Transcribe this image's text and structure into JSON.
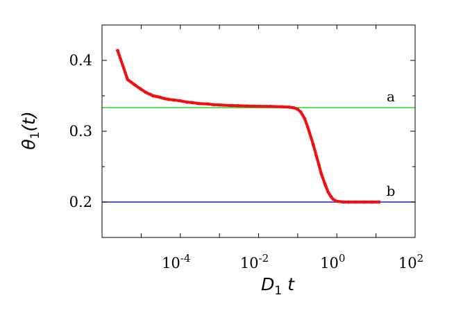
{
  "chart_data": {
    "type": "scatter",
    "title": "",
    "xlabel": {
      "main": "D",
      "sub": "1",
      "rest": " t"
    },
    "ylabel": {
      "main": "θ",
      "sub": "1",
      "rest": "(t)"
    },
    "xscale": "log",
    "xlim": [
      1e-06,
      100
    ],
    "ylim": [
      0.15,
      0.45
    ],
    "xticks": [
      {
        "value": 0.0001,
        "base": "10",
        "exp": "-4"
      },
      {
        "value": 0.01,
        "base": "10",
        "exp": "-2"
      },
      {
        "value": 1,
        "base": "10",
        "exp": "0"
      },
      {
        "value": 100,
        "base": "10",
        "exp": "2"
      }
    ],
    "yticks": [
      {
        "value": 0.2,
        "label": "0.2"
      },
      {
        "value": 0.3,
        "label": "0.3"
      },
      {
        "value": 0.4,
        "label": "0.4"
      }
    ],
    "grid": false,
    "reference_lines": [
      {
        "label": "a",
        "y": 0.3333,
        "color": "#33dd33"
      },
      {
        "label": "b",
        "y": 0.2,
        "color": "#1a1acc"
      }
    ],
    "series": [
      {
        "color": "#ee1111",
        "points": [
          [
            2.5e-06,
            0.414
          ],
          [
            4.5e-06,
            0.373
          ],
          [
            7e-06,
            0.365
          ],
          [
            9.5e-06,
            0.36
          ],
          [
            1.3e-05,
            0.355
          ],
          [
            1.7e-05,
            0.352
          ],
          [
            2e-05,
            0.35
          ],
          [
            2.5e-05,
            0.349
          ],
          [
            3e-05,
            0.348
          ],
          [
            4e-05,
            0.346
          ],
          [
            5e-05,
            0.345
          ],
          [
            7e-05,
            0.344
          ],
          [
            0.0001,
            0.343
          ],
          [
            0.00015,
            0.341
          ],
          [
            0.0002,
            0.3405
          ],
          [
            0.0003,
            0.339
          ],
          [
            0.0005,
            0.3385
          ],
          [
            0.0007,
            0.3375
          ],
          [
            0.001,
            0.337
          ],
          [
            0.002,
            0.3362
          ],
          [
            0.003,
            0.336
          ],
          [
            0.005,
            0.3355
          ],
          [
            0.01,
            0.3352
          ],
          [
            0.02,
            0.335
          ],
          [
            0.04,
            0.3345
          ],
          [
            0.06,
            0.334
          ],
          [
            0.08,
            0.333
          ],
          [
            0.1,
            0.331
          ],
          [
            0.12,
            0.327
          ],
          [
            0.15,
            0.318
          ],
          [
            0.18,
            0.306
          ],
          [
            0.2,
            0.298
          ],
          [
            0.25,
            0.281
          ],
          [
            0.3,
            0.265
          ],
          [
            0.35,
            0.252
          ],
          [
            0.4,
            0.24
          ],
          [
            0.5,
            0.225
          ],
          [
            0.6,
            0.214
          ],
          [
            0.7,
            0.208
          ],
          [
            0.8,
            0.204
          ],
          [
            1.0,
            0.201
          ],
          [
            1.5,
            0.2
          ],
          [
            2,
            0.2
          ],
          [
            3,
            0.2
          ],
          [
            5,
            0.2
          ],
          [
            8,
            0.2
          ],
          [
            12,
            0.2
          ]
        ]
      }
    ]
  }
}
